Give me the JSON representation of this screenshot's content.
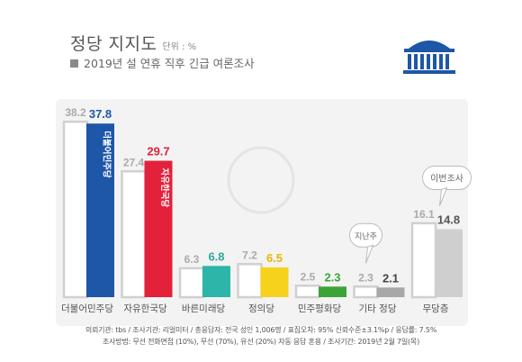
{
  "header": {
    "title": "정당 지지도",
    "unit": "단위 : %",
    "subtitle": "2019년 설 연휴 직후 긴급 여론조사"
  },
  "colors": {
    "previous_bar": "#ffffff",
    "previous_outline": "#d0d0d0",
    "previous_label": "#aaaaaa",
    "panel_bg": "#f3f3f3",
    "logo_blue": "#1e56a8"
  },
  "chart_data": {
    "type": "bar",
    "title": "정당 지지도",
    "ylim": [
      0,
      40
    ],
    "categories": [
      "더불어민주당",
      "자유한국당",
      "바른미래당",
      "정의당",
      "민주평화당",
      "기타 정당",
      "무당층"
    ],
    "series": [
      {
        "name": "지난주",
        "values": [
          38.2,
          27.4,
          6.3,
          7.2,
          2.5,
          2.3,
          16.1
        ],
        "labels": [
          "38.2",
          "27.4",
          "6.3",
          "7.2",
          "2.5",
          "2.3",
          "16.1"
        ]
      },
      {
        "name": "이번조사",
        "values": [
          37.8,
          29.7,
          6.8,
          6.5,
          2.3,
          2.1,
          14.8
        ],
        "labels": [
          "37.8",
          "29.7",
          "6.8",
          "6.5",
          "2.3",
          "2.1",
          "14.8"
        ],
        "colors": [
          "#1e56a8",
          "#e3213b",
          "#2cb5a8",
          "#f7d21c",
          "#3aa536",
          "#a8a8a8",
          "#cfcfcf"
        ],
        "label_colors": [
          "#1e56a8",
          "#e3213b",
          "#2ea89c",
          "#e6b800",
          "#3aa536",
          "#444444",
          "#555555"
        ]
      }
    ],
    "annotations": [
      {
        "text": "지난주",
        "target_series": 0,
        "target_index": 5
      },
      {
        "text": "이번조사",
        "target_series": 1,
        "target_index": 6
      }
    ],
    "bar_logos": [
      "더불어민주당",
      "자유한국당"
    ]
  },
  "footnotes": {
    "line1": "의뢰기관: tbs / 조사기관: 리얼미터 / 총응답자: 전국 성인 1,006명 / 표집오차: 95% 신뢰수준±3.1%p / 응답률: 7.5%",
    "line2": "조사방법: 무선 전화면접 (10%), 무선 (70%), 유선 (20%) 자동 응답 혼용 / 조사기간: 2019년 2월 7일(목)"
  }
}
